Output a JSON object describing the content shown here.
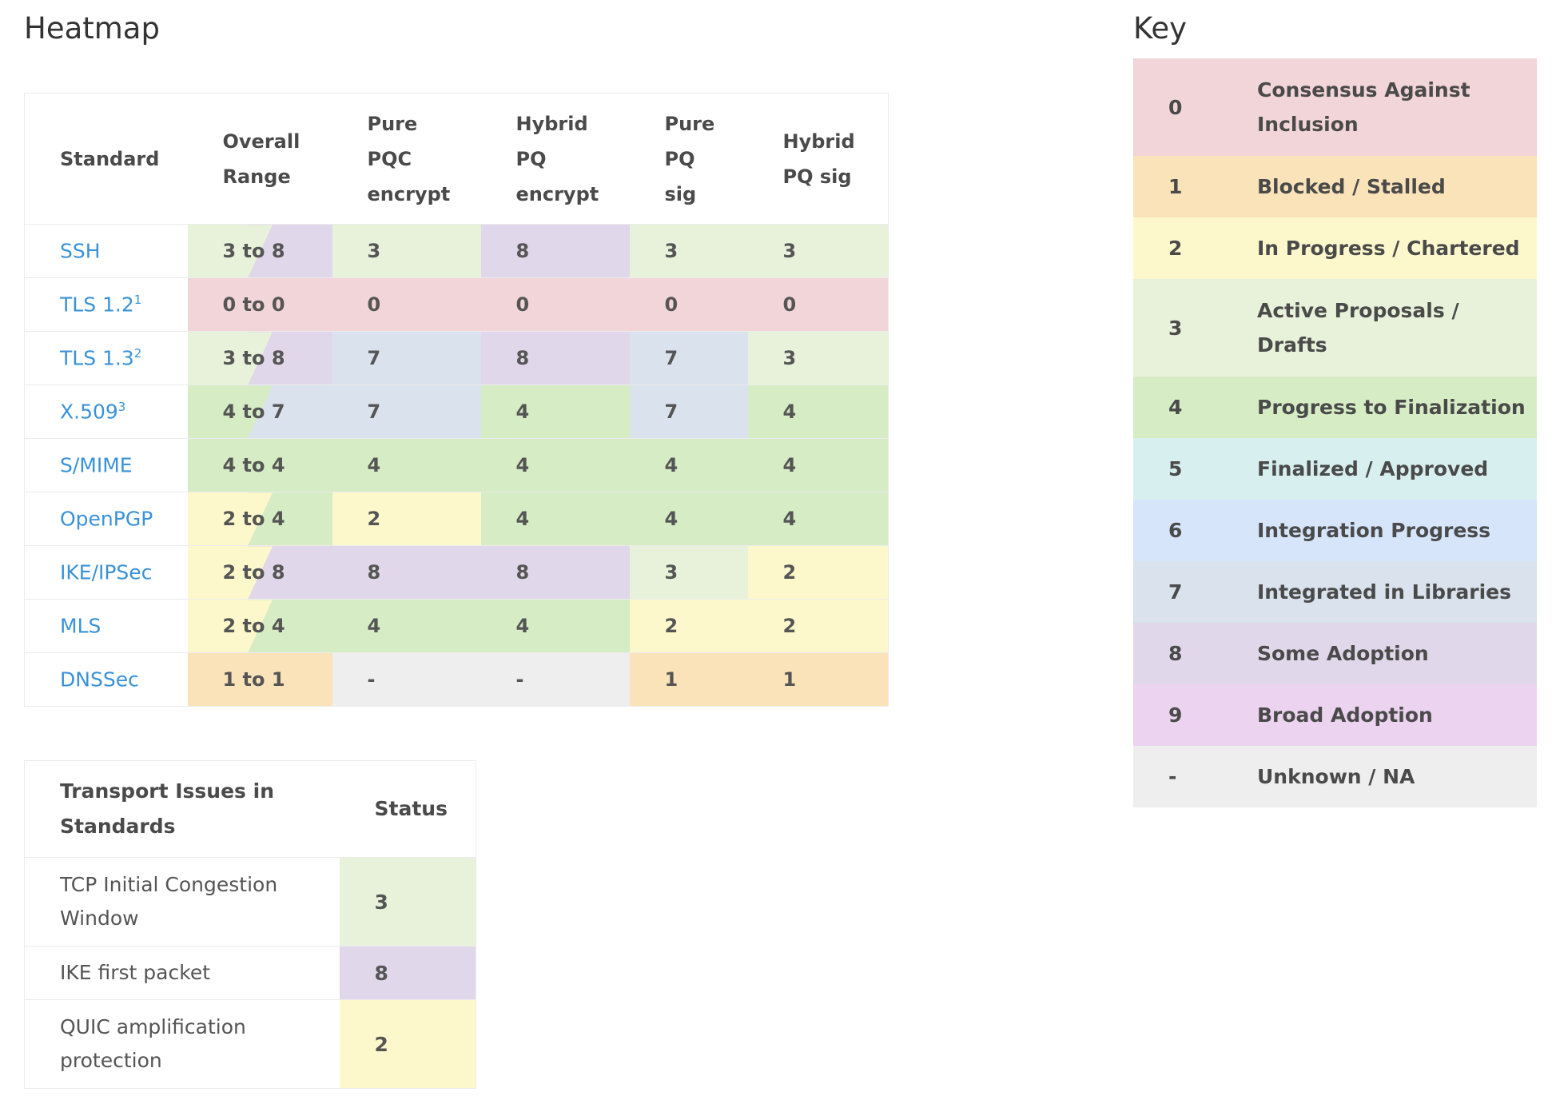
{
  "heatmap": {
    "title": "Heatmap",
    "headers": {
      "standard": "Standard",
      "overall_line1": "Overall",
      "overall_line2": "Range",
      "pure_pqc_1": "Pure",
      "pure_pqc_2": "PQC",
      "pure_pqc_3": "encrypt",
      "hybrid_pq_enc_1": "Hybrid",
      "hybrid_pq_enc_2": "PQ",
      "hybrid_pq_enc_3": "encrypt",
      "pure_pq_sig_1": "Pure",
      "pure_pq_sig_2": "PQ",
      "pure_pq_sig_3": "sig",
      "hybrid_pq_sig_1": "Hybrid",
      "hybrid_pq_sig_2": "PQ sig"
    },
    "rows": [
      {
        "name": "SSH",
        "sup": "",
        "range": "3 to 8",
        "range_low": 3,
        "range_high": 8,
        "cells": [
          "3",
          "8",
          "3",
          "3"
        ]
      },
      {
        "name": "TLS 1.2",
        "sup": "1",
        "range": "0 to 0",
        "range_low": 0,
        "range_high": 0,
        "cells": [
          "0",
          "0",
          "0",
          "0"
        ]
      },
      {
        "name": "TLS 1.3",
        "sup": "2",
        "range": "3 to 8",
        "range_low": 3,
        "range_high": 8,
        "cells": [
          "7",
          "8",
          "7",
          "3"
        ]
      },
      {
        "name": "X.509",
        "sup": "3",
        "range": "4 to 7",
        "range_low": 4,
        "range_high": 7,
        "cells": [
          "7",
          "4",
          "7",
          "4"
        ]
      },
      {
        "name": "S/MIME",
        "sup": "",
        "range": "4 to 4",
        "range_low": 4,
        "range_high": 4,
        "cells": [
          "4",
          "4",
          "4",
          "4"
        ]
      },
      {
        "name": "OpenPGP",
        "sup": "",
        "range": "2 to 4",
        "range_low": 2,
        "range_high": 4,
        "cells": [
          "2",
          "4",
          "4",
          "4"
        ]
      },
      {
        "name": "IKE/IPSec",
        "sup": "",
        "range": "2 to 8",
        "range_low": 2,
        "range_high": 8,
        "cells": [
          "8",
          "8",
          "3",
          "2"
        ]
      },
      {
        "name": "MLS",
        "sup": "",
        "range": "2 to 4",
        "range_low": 2,
        "range_high": 4,
        "cells": [
          "4",
          "4",
          "2",
          "2"
        ]
      },
      {
        "name": "DNSSec",
        "sup": "",
        "range": "1 to 1",
        "range_low": 1,
        "range_high": 1,
        "cells": [
          "-",
          "-",
          "1",
          "1"
        ]
      }
    ]
  },
  "transport": {
    "header_issue_1": "Transport Issues in",
    "header_issue_2": "Standards",
    "header_status": "Status",
    "rows": [
      {
        "issue_1": "TCP Initial Congestion",
        "issue_2": "Window",
        "status": "3"
      },
      {
        "issue_1": "IKE first packet",
        "issue_2": "",
        "status": "8"
      },
      {
        "issue_1": "QUIC amplification",
        "issue_2": "protection",
        "status": "2"
      }
    ]
  },
  "key": {
    "title": "Key",
    "rows": [
      {
        "value": "0",
        "label_1": "Consensus Against",
        "label_2": "Inclusion"
      },
      {
        "value": "1",
        "label_1": "Blocked / Stalled",
        "label_2": ""
      },
      {
        "value": "2",
        "label_1": "In Progress / Chartered",
        "label_2": ""
      },
      {
        "value": "3",
        "label_1": "Active Proposals /",
        "label_2": "Drafts"
      },
      {
        "value": "4",
        "label_1": "Progress to Finalization",
        "label_2": ""
      },
      {
        "value": "5",
        "label_1": "Finalized / Approved",
        "label_2": ""
      },
      {
        "value": "6",
        "label_1": "Integration Progress",
        "label_2": ""
      },
      {
        "value": "7",
        "label_1": "Integrated in Libraries",
        "label_2": ""
      },
      {
        "value": "8",
        "label_1": "Some Adoption",
        "label_2": ""
      },
      {
        "value": "9",
        "label_1": "Broad Adoption",
        "label_2": ""
      },
      {
        "value": "-",
        "label_1": "Unknown / NA",
        "label_2": ""
      }
    ]
  },
  "colors": {
    "0": "#f2d5d8",
    "1": "#fae3b8",
    "2": "#fdf8cc",
    "3": "#e8f2da",
    "4": "#d5ecc4",
    "5": "#d7f0ef",
    "6": "#d6e5fa",
    "7": "#dae2ee",
    "8": "#e0d7ea",
    "9": "#ecd3f0",
    "-": "#eeeeee"
  }
}
